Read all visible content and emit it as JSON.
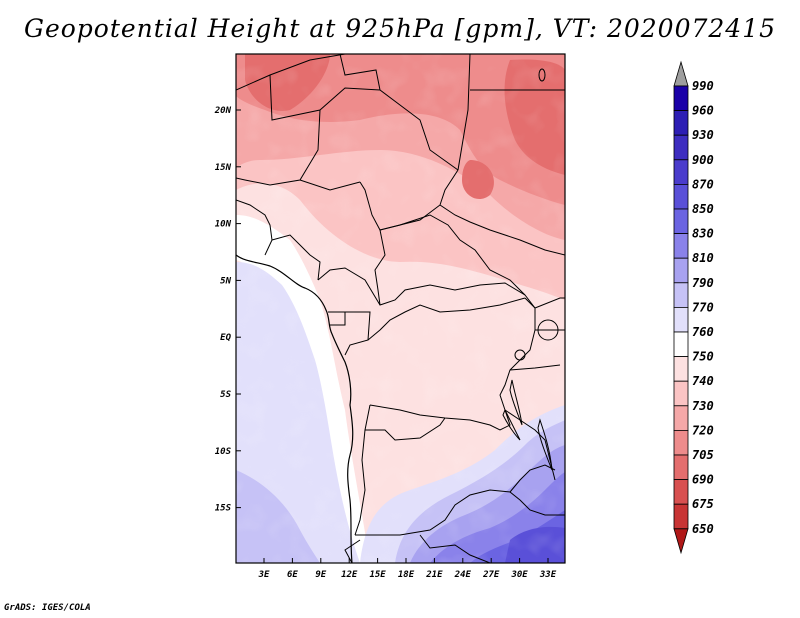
{
  "title": "Geopotential Height at 925hPa [gpm], VT: 2020072415",
  "footer": "GrADS: IGES/COLA",
  "map": {
    "lat_labels": [
      "20N",
      "15N",
      "10N",
      "5N",
      "EQ",
      "5S",
      "10S",
      "15S"
    ],
    "lon_labels": [
      "3E",
      "6E",
      "9E",
      "12E",
      "15E",
      "18E",
      "21E",
      "24E",
      "27E",
      "30E",
      "33E"
    ]
  },
  "colorbar": {
    "levels": [
      "990",
      "960",
      "930",
      "900",
      "870",
      "850",
      "830",
      "810",
      "790",
      "770",
      "760",
      "750",
      "740",
      "730",
      "720",
      "705",
      "690",
      "675",
      "650"
    ],
    "colors": [
      "#1a00a8",
      "#2d1eb4",
      "#3d2dc0",
      "#4a3ccc",
      "#5a50d8",
      "#6b64e2",
      "#8a82ea",
      "#a8a2f0",
      "#c6c2f6",
      "#e2e0fb",
      "#ffffff",
      "#fde1e1",
      "#fbc4c4",
      "#f5a8a8",
      "#ee8c8c",
      "#e46e6e",
      "#d85050",
      "#c83434",
      "#b81c1c"
    ],
    "top_arrow_color": "#9e9e9e",
    "bottom_arrow_color": "#b01818"
  }
}
